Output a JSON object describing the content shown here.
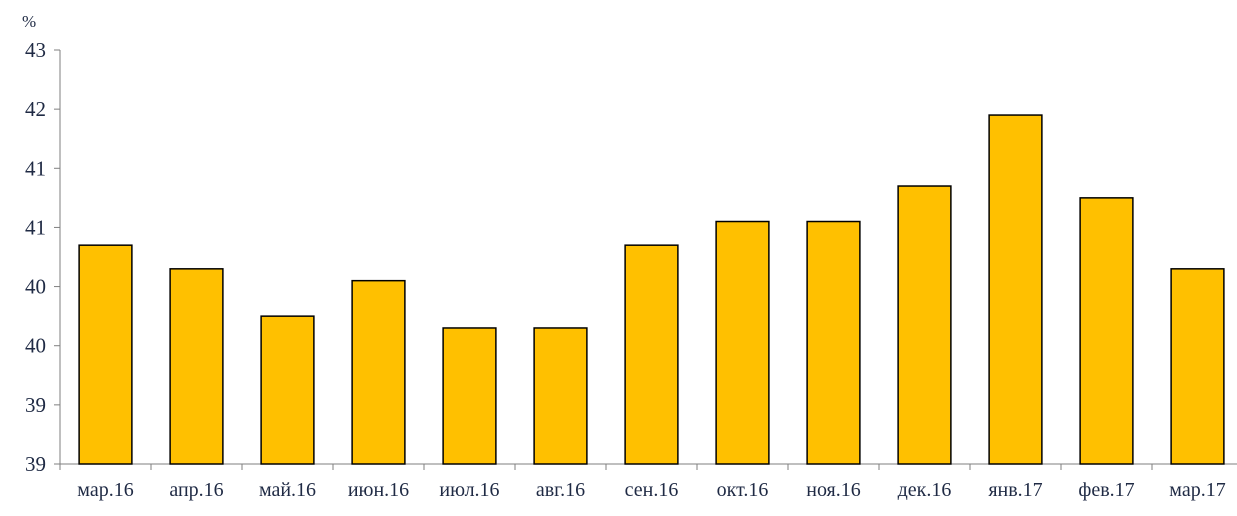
{
  "chart_data": {
    "type": "bar",
    "unit_label": "%",
    "categories": [
      "мар.16",
      "апр.16",
      "май.16",
      "июн.16",
      "июл.16",
      "авг.16",
      "сен.16",
      "окт.16",
      "ноя.16",
      "дек.16",
      "янв.17",
      "фев.17",
      "мар.17"
    ],
    "values": [
      40.85,
      40.65,
      40.25,
      40.55,
      40.15,
      40.15,
      40.85,
      41.05,
      41.05,
      41.35,
      41.95,
      41.25,
      40.65
    ],
    "ylim": [
      39.0,
      42.5
    ],
    "yticks": [
      39.0,
      39.5,
      40.0,
      40.5,
      41.0,
      41.5,
      42.0,
      42.5
    ],
    "ytick_labels": [
      "39",
      "39",
      "40",
      "40",
      "41",
      "41",
      "42",
      "43"
    ],
    "bar_color": "#FFC000",
    "bar_edge_color": "#000000",
    "grid": false,
    "legend": false
  }
}
